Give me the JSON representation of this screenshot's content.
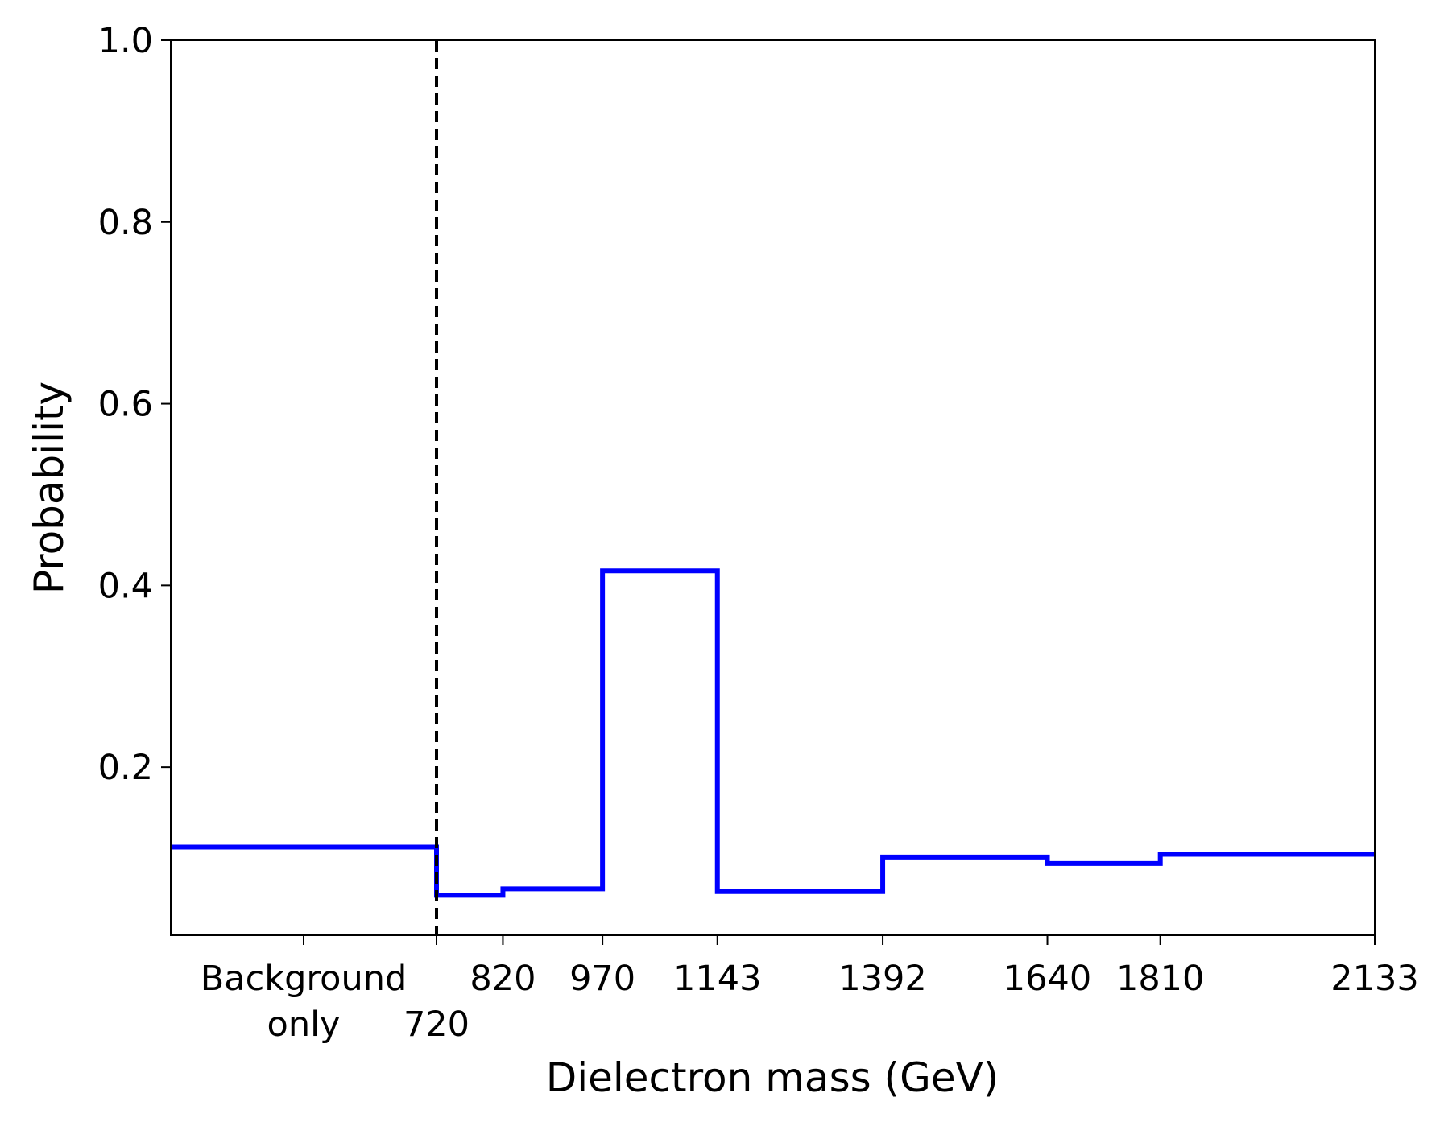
{
  "chart_data": {
    "type": "step",
    "xlabel": "Dielectron mass (GeV)",
    "ylabel": "Probability",
    "ylim": [
      0.015,
      1.0
    ],
    "yticks": [
      "0.2",
      "0.4",
      "0.6",
      "0.8",
      "1.0"
    ],
    "ytick_values": [
      0.2,
      0.4,
      0.6,
      0.8,
      1.0
    ],
    "background_label": [
      "Background",
      "only"
    ],
    "x_edges": [
      720,
      820,
      970,
      1143,
      1392,
      1640,
      1810,
      2133
    ],
    "x_tick_labels": [
      "720",
      "820",
      "970",
      "1143",
      "1392",
      "1640",
      "1810",
      "2133"
    ],
    "background_value": 0.112,
    "bin_values": [
      0.059,
      0.066,
      0.416,
      0.063,
      0.101,
      0.094,
      0.104
    ],
    "grid": false,
    "colors": {
      "step_line": "#0000ff",
      "divider_line": "#000000",
      "axes": "#000000"
    }
  }
}
